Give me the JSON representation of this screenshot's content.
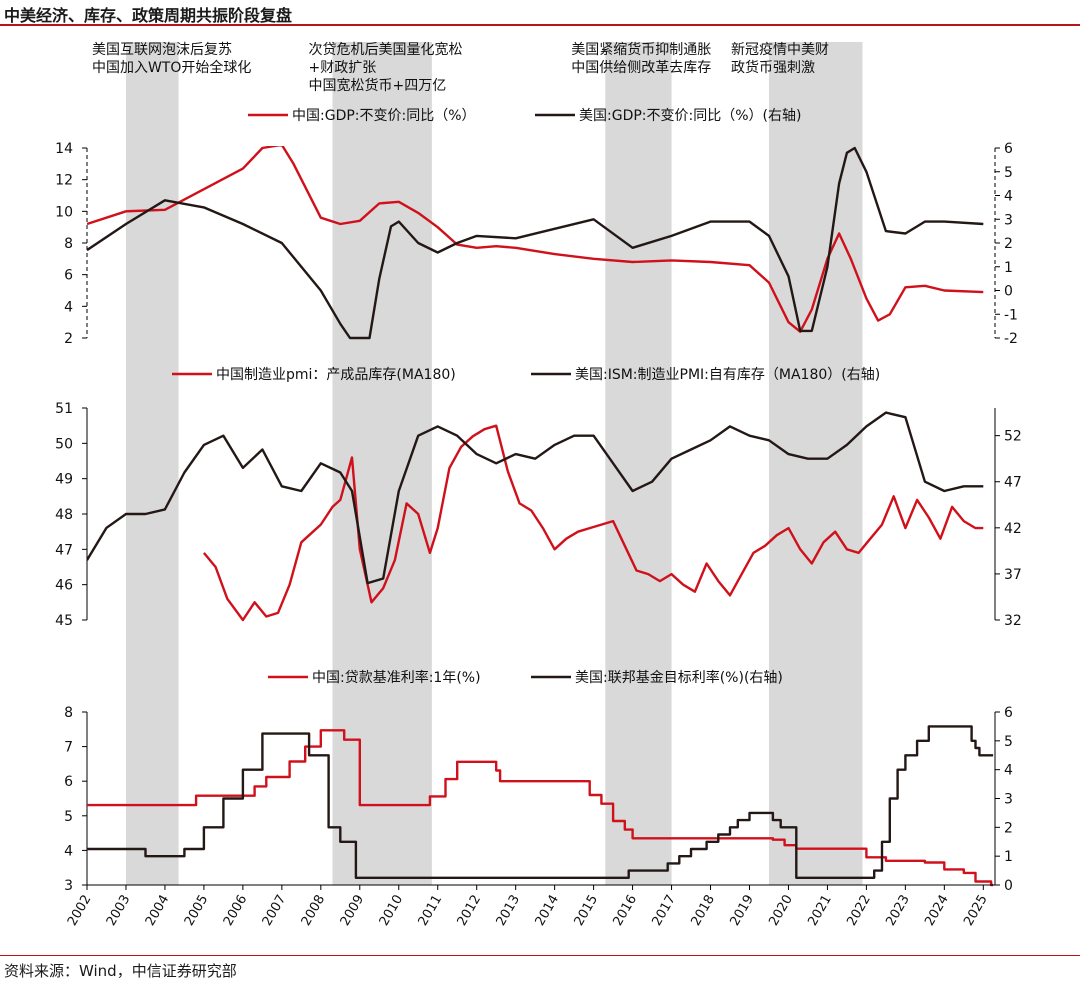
{
  "page_title": "中美经济、库存、政策周期共振阶段复盘",
  "source": "资料来源：Wind，中信证券研究部",
  "colors": {
    "china": "#d0111b",
    "us": "#231815",
    "band": "#d9d9d9",
    "accent": "#b9141b"
  },
  "chart_data": [
    {
      "type": "line",
      "panel": "gdp",
      "legend": [
        "中国:GDP:不变价:同比（%）",
        "美国:GDP:不变价:同比（%）(右轴)"
      ],
      "legend_placement": "top",
      "ylim_left": [
        2,
        14
      ],
      "yticks_left": [
        2,
        4,
        6,
        8,
        10,
        12,
        14
      ],
      "ylim_right": [
        -2,
        6
      ],
      "yticks_right": [
        -2,
        -1,
        0,
        1,
        2,
        3,
        4,
        5,
        6
      ],
      "series": [
        {
          "name": "中国:GDP:不变价:同比（%）",
          "axis": "left",
          "x": [
            2002.0,
            2003.0,
            2004.0,
            2005.0,
            2006.0,
            2006.5,
            2007.0,
            2007.3,
            2008.0,
            2008.5,
            2009.0,
            2009.5,
            2010.0,
            2010.5,
            2011.0,
            2011.5,
            2012.0,
            2012.5,
            2013.0,
            2014.0,
            2015.0,
            2016.0,
            2017.0,
            2018.0,
            2019.0,
            2019.5,
            2020.0,
            2020.3,
            2020.6,
            2021.0,
            2021.3,
            2021.6,
            2022.0,
            2022.3,
            2022.6,
            2023.0,
            2023.5,
            2024.0,
            2025.0
          ],
          "y": [
            9.2,
            10.0,
            10.1,
            11.4,
            12.7,
            14.0,
            14.2,
            13.0,
            9.6,
            9.2,
            9.4,
            10.5,
            10.6,
            9.9,
            9.0,
            7.9,
            7.7,
            7.8,
            7.7,
            7.3,
            7.0,
            6.8,
            6.9,
            6.8,
            6.6,
            5.5,
            3.0,
            2.4,
            3.8,
            7.0,
            8.6,
            7.0,
            4.5,
            3.1,
            3.5,
            5.2,
            5.3,
            5.0,
            4.9
          ]
        },
        {
          "name": "美国:GDP:不变价:同比（%）(右轴)",
          "axis": "right",
          "x": [
            2002.0,
            2003.0,
            2004.0,
            2005.0,
            2006.0,
            2007.0,
            2008.0,
            2008.5,
            2008.75,
            2009.25,
            2009.5,
            2009.8,
            2010.0,
            2010.5,
            2011.0,
            2011.5,
            2012.0,
            2013.0,
            2014.0,
            2015.0,
            2016.0,
            2017.0,
            2018.0,
            2019.0,
            2019.5,
            2020.0,
            2020.3,
            2020.6,
            2021.0,
            2021.3,
            2021.5,
            2021.7,
            2022.0,
            2022.5,
            2023.0,
            2023.5,
            2024.0,
            2025.0
          ],
          "y": [
            1.7,
            2.8,
            3.8,
            3.5,
            2.8,
            2.0,
            0.0,
            -1.4,
            -2.0,
            -2.0,
            0.5,
            2.7,
            2.9,
            2.0,
            1.6,
            2.0,
            2.3,
            2.2,
            2.6,
            3.0,
            1.8,
            2.3,
            2.9,
            2.9,
            2.3,
            0.6,
            -1.7,
            -1.7,
            1.0,
            4.5,
            5.8,
            6.0,
            5.0,
            2.5,
            2.4,
            2.9,
            2.9,
            2.8
          ]
        }
      ]
    },
    {
      "type": "line",
      "panel": "inventory",
      "legend": [
        "中国制造业pmi：产成品库存(MA180)",
        "美国:ISM:制造业PMI:自有库存（MA180）(右轴)"
      ],
      "legend_placement": "top",
      "ylim_left": [
        45,
        51
      ],
      "yticks_left": [
        45,
        46,
        47,
        48,
        49,
        50,
        51
      ],
      "ylim_right": [
        32,
        55
      ],
      "yticks_right": [
        32,
        37,
        42,
        47,
        52
      ],
      "series": [
        {
          "name": "中国制造业pmi：产成品库存(MA180)",
          "axis": "left",
          "x": [
            2005.0,
            2005.3,
            2005.6,
            2006.0,
            2006.3,
            2006.6,
            2006.9,
            2007.2,
            2007.5,
            2007.8,
            2008.0,
            2008.3,
            2008.5,
            2008.8,
            2009.0,
            2009.3,
            2009.6,
            2009.9,
            2010.2,
            2010.5,
            2010.8,
            2011.0,
            2011.3,
            2011.6,
            2011.9,
            2012.2,
            2012.5,
            2012.8,
            2013.1,
            2013.4,
            2013.7,
            2014.0,
            2014.3,
            2014.6,
            2014.9,
            2015.2,
            2015.5,
            2015.8,
            2016.1,
            2016.4,
            2016.7,
            2017.0,
            2017.3,
            2017.6,
            2017.9,
            2018.2,
            2018.5,
            2018.8,
            2019.1,
            2019.4,
            2019.7,
            2020.0,
            2020.3,
            2020.6,
            2020.9,
            2021.2,
            2021.5,
            2021.8,
            2022.1,
            2022.4,
            2022.7,
            2023.0,
            2023.3,
            2023.6,
            2023.9,
            2024.2,
            2024.5,
            2024.8,
            2025.0
          ],
          "y": [
            46.9,
            46.5,
            45.6,
            45.0,
            45.5,
            45.1,
            45.2,
            46.0,
            47.2,
            47.5,
            47.7,
            48.2,
            48.4,
            49.6,
            47.0,
            45.5,
            45.9,
            46.7,
            48.3,
            48.0,
            46.9,
            47.6,
            49.3,
            49.9,
            50.2,
            50.4,
            50.5,
            49.2,
            48.3,
            48.1,
            47.6,
            47.0,
            47.3,
            47.5,
            47.6,
            47.7,
            47.8,
            47.1,
            46.4,
            46.3,
            46.1,
            46.3,
            46.0,
            45.8,
            46.6,
            46.1,
            45.7,
            46.3,
            46.9,
            47.1,
            47.4,
            47.6,
            47.0,
            46.6,
            47.2,
            47.5,
            47.0,
            46.9,
            47.3,
            47.7,
            48.5,
            47.6,
            48.4,
            47.9,
            47.3,
            48.2,
            47.8,
            47.6,
            47.6
          ]
        },
        {
          "name": "美国:ISM:制造业PMI:自有库存（MA180）(右轴)",
          "axis": "right",
          "x": [
            2002.0,
            2002.5,
            2003.0,
            2003.5,
            2004.0,
            2004.5,
            2005.0,
            2005.5,
            2006.0,
            2006.5,
            2007.0,
            2007.5,
            2008.0,
            2008.5,
            2008.8,
            2009.2,
            2009.6,
            2010.0,
            2010.5,
            2011.0,
            2011.5,
            2012.0,
            2012.5,
            2013.0,
            2013.5,
            2014.0,
            2014.5,
            2015.0,
            2015.5,
            2016.0,
            2016.5,
            2017.0,
            2017.5,
            2018.0,
            2018.5,
            2019.0,
            2019.5,
            2020.0,
            2020.5,
            2021.0,
            2021.5,
            2022.0,
            2022.5,
            2023.0,
            2023.5,
            2024.0,
            2024.5,
            2025.0
          ],
          "y": [
            38.5,
            42.0,
            43.5,
            43.5,
            44.0,
            48.0,
            51.0,
            52.0,
            48.5,
            50.5,
            46.5,
            46.0,
            49.0,
            48.0,
            46.0,
            36.0,
            36.5,
            46.0,
            52.0,
            53.0,
            52.0,
            50.0,
            49.0,
            50.0,
            49.5,
            51.0,
            52.0,
            52.0,
            49.0,
            46.0,
            47.0,
            49.5,
            50.5,
            51.5,
            53.0,
            52.0,
            51.5,
            50.0,
            49.5,
            49.5,
            51.0,
            53.0,
            54.5,
            54.0,
            47.0,
            46.0,
            46.5,
            46.5
          ]
        }
      ]
    },
    {
      "type": "line",
      "panel": "rates",
      "legend": [
        "中国:贷款基准利率:1年(%)",
        "美国:联邦基金目标利率(%)(右轴)"
      ],
      "legend_placement": "top",
      "ylim_left": [
        3,
        8
      ],
      "yticks_left": [
        3,
        4,
        5,
        6,
        7,
        8
      ],
      "ylim_right": [
        0,
        6
      ],
      "yticks_right": [
        0,
        1,
        2,
        3,
        4,
        5,
        6
      ],
      "series": [
        {
          "name": "中国:贷款基准利率:1年(%)",
          "axis": "left",
          "step": true,
          "x": [
            2002.0,
            2004.8,
            2006.3,
            2006.6,
            2007.2,
            2007.6,
            2008.0,
            2008.6,
            2009.0,
            2010.8,
            2011.2,
            2011.5,
            2012.5,
            2012.6,
            2014.9,
            2015.2,
            2015.5,
            2015.8,
            2016.0,
            2019.6,
            2019.9,
            2020.2,
            2022.0,
            2022.5,
            2023.5,
            2024.0,
            2024.5,
            2024.8,
            2025.2
          ],
          "y": [
            5.31,
            5.58,
            5.85,
            6.12,
            6.57,
            7.0,
            7.47,
            7.2,
            5.31,
            5.56,
            6.06,
            6.56,
            6.31,
            6.0,
            5.6,
            5.35,
            4.85,
            4.6,
            4.35,
            4.31,
            4.15,
            4.05,
            3.8,
            3.7,
            3.65,
            3.45,
            3.35,
            3.1,
            3.0
          ]
        },
        {
          "name": "美国:联邦基金目标利率(%)(右轴)",
          "axis": "right",
          "step": true,
          "x": [
            2002.0,
            2003.5,
            2004.5,
            2005.0,
            2005.5,
            2006.0,
            2006.5,
            2007.7,
            2008.2,
            2008.5,
            2008.9,
            2015.9,
            2016.9,
            2017.2,
            2017.5,
            2017.9,
            2018.2,
            2018.5,
            2018.7,
            2019.0,
            2019.6,
            2019.8,
            2020.2,
            2022.2,
            2022.4,
            2022.6,
            2022.8,
            2023.0,
            2023.3,
            2023.6,
            2024.7,
            2024.8,
            2024.9,
            2025.0
          ],
          "y": [
            1.25,
            1.0,
            1.25,
            2.0,
            3.0,
            4.0,
            5.25,
            4.5,
            2.0,
            1.5,
            0.25,
            0.5,
            0.75,
            1.0,
            1.25,
            1.5,
            1.75,
            2.0,
            2.25,
            2.5,
            2.25,
            2.0,
            0.25,
            0.5,
            1.5,
            3.0,
            4.0,
            4.5,
            5.0,
            5.5,
            5.0,
            4.75,
            4.5,
            4.5
          ]
        }
      ]
    }
  ],
  "x_axis": {
    "tick_labels": [
      "2002",
      "2003",
      "2004",
      "2005",
      "2006",
      "2007",
      "2008",
      "2009",
      "2010",
      "2011",
      "2012",
      "2013",
      "2014",
      "2015",
      "2016",
      "2017",
      "2018",
      "2019",
      "2020",
      "2021",
      "2022",
      "2023",
      "2024",
      "2025"
    ],
    "range": [
      2002,
      2025.3
    ]
  },
  "bands": [
    {
      "start": 2003.0,
      "end": 2004.35,
      "annotation": [
        "美国互联网泡沫后复苏",
        "中国加入WTO开始全球化"
      ]
    },
    {
      "start": 2008.3,
      "end": 2010.85,
      "annotation": [
        "次贷危机后美国量化宽松",
        "+财政扩张",
        "中国宽松货币+四万亿"
      ]
    },
    {
      "start": 2015.3,
      "end": 2017.0,
      "annotation": [
        "美国紧缩货币抑制通胀",
        "中国供给侧改革去库存"
      ]
    },
    {
      "start": 2019.5,
      "end": 2021.9,
      "annotation": [
        "新冠疫情中美财",
        "政货币强刺激"
      ]
    }
  ]
}
